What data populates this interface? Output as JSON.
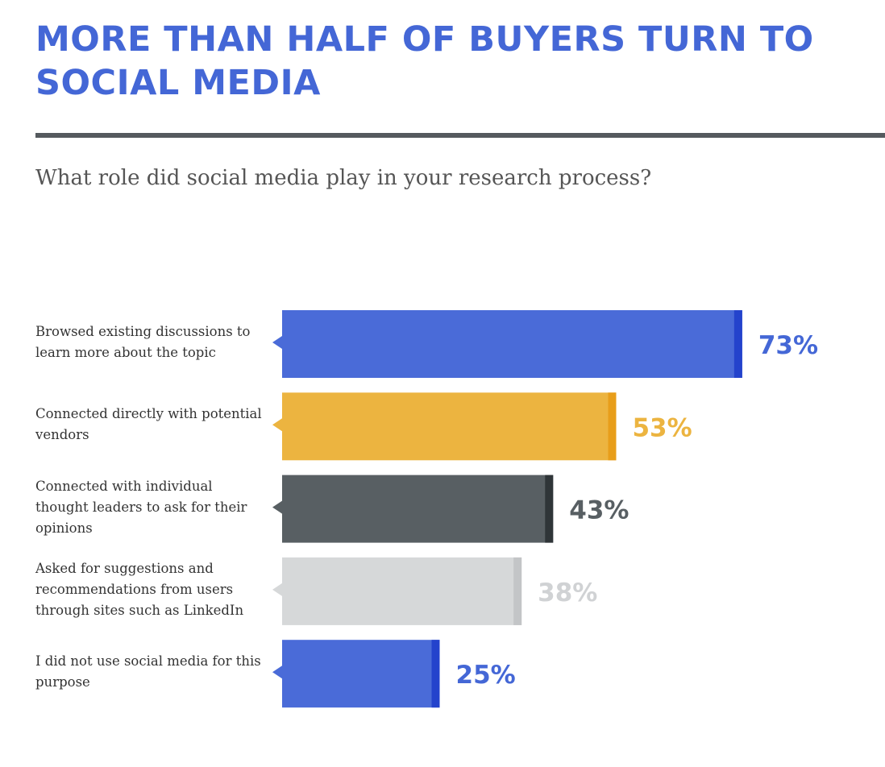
{
  "title": "MORE THAN HALF OF BUYERS TURN TO SOCIAL MEDIA",
  "subtitle": "What role did social media play in your research process?",
  "chart_data": {
    "type": "bar",
    "orientation": "horizontal",
    "categories": [
      "Browsed existing discussions to learn more about the topic",
      "Connected directly with potential vendors",
      "Connected with individual thought leaders to ask for their opinions",
      "Asked for suggestions and recommendations from users through sites such as LinkedIn",
      "I did not use social media for this purpose"
    ],
    "values": [
      73,
      53,
      43,
      38,
      25
    ],
    "value_labels": [
      "73%",
      "53%",
      "43%",
      "38%",
      "25%"
    ],
    "unit": "%",
    "xlim": [
      0,
      100
    ],
    "grid": false,
    "colors": [
      "#4a6bd8",
      "#ecb440",
      "#585f63",
      "#d6d8d9",
      "#4a6bd8"
    ],
    "edge_colors": [
      "#2443cc",
      "#e89e1a",
      "#2f3538",
      "#c3c5c7",
      "#2443cc"
    ],
    "label_colors": [
      "#4467d6",
      "#ecb440",
      "#585f63",
      "#d0d2d4",
      "#4467d6"
    ]
  }
}
